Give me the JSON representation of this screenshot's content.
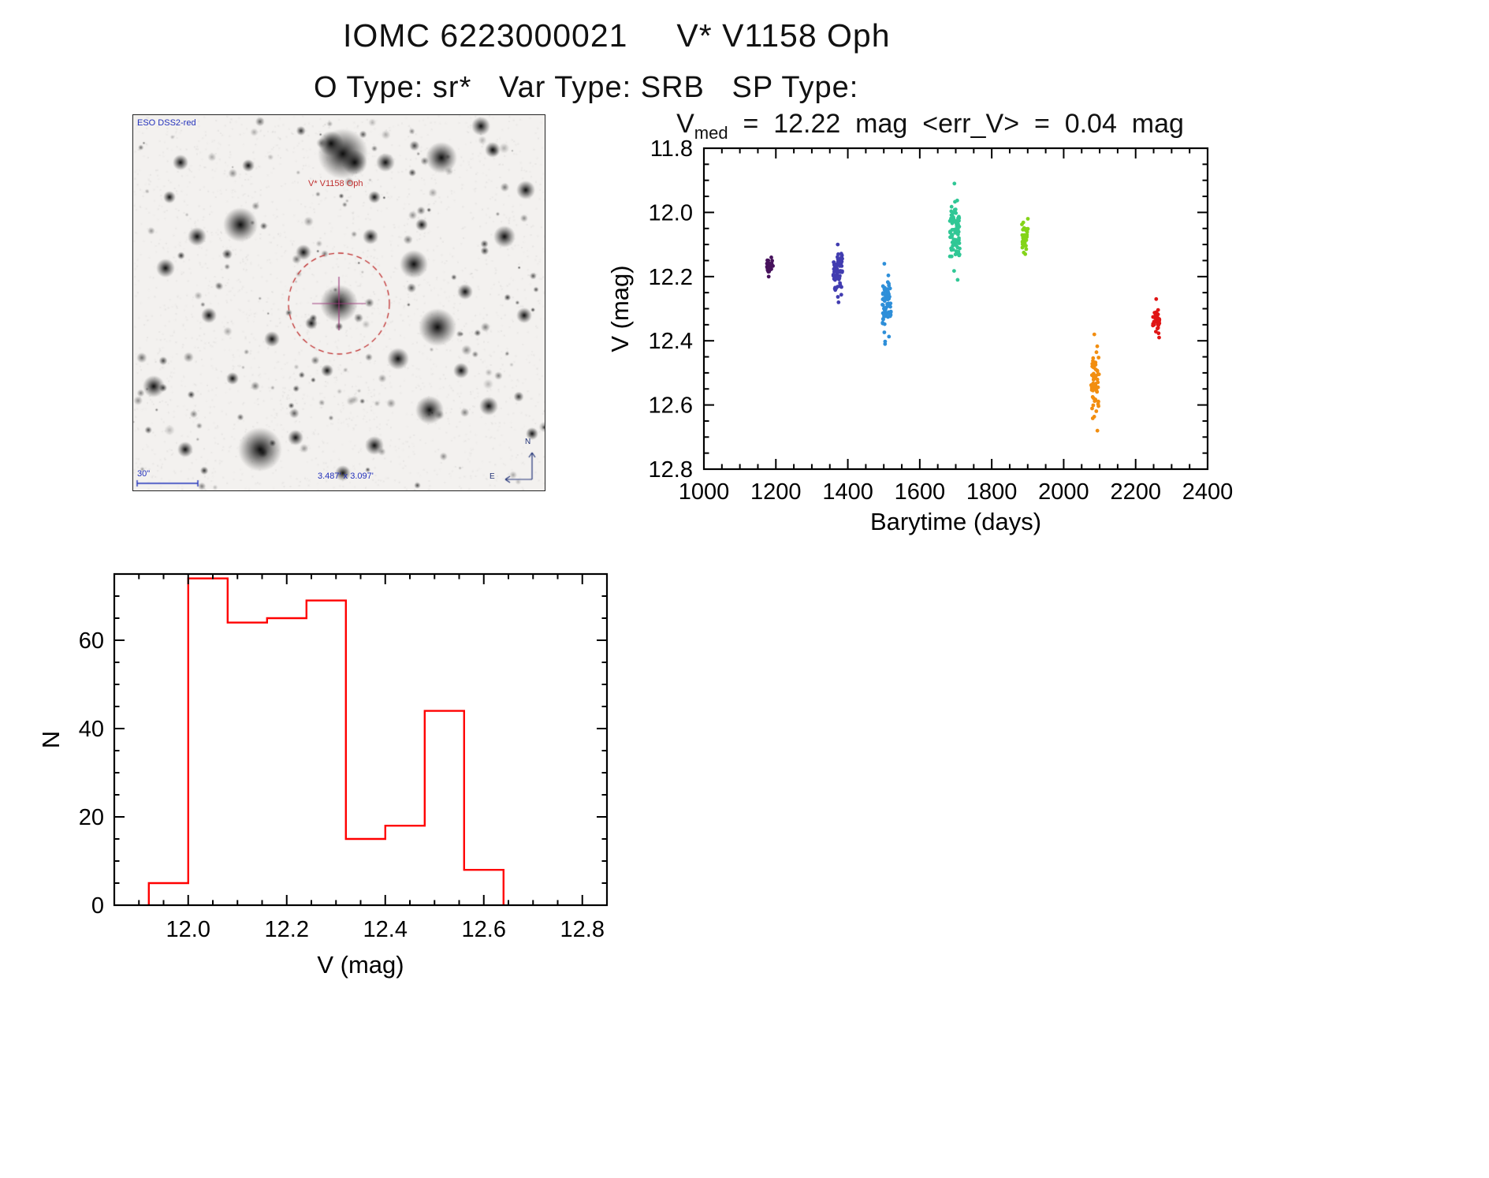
{
  "header": {
    "title": "IOMC 6223000021     V* V1158 Oph",
    "subtitle": "O Type: sr*   Var Type: SRB   SP Type:"
  },
  "finder": {
    "survey": "ESO DSS2-red",
    "target": "V* V1158 Oph",
    "scalebar": "30\"",
    "fov": "3.487' x 3.097'",
    "compass_north": "N",
    "compass_east": "E",
    "target_x": 261,
    "target_y": 239,
    "circle_r": 64,
    "stars": [
      [
        266,
        49,
        16
      ],
      [
        251,
        36,
        8
      ],
      [
        281,
        60,
        8
      ],
      [
        391,
        54,
        10
      ],
      [
        441,
        14,
        6
      ],
      [
        136,
        139,
        11
      ],
      [
        81,
        154,
        6
      ],
      [
        356,
        189,
        9
      ],
      [
        261,
        239,
        12
      ],
      [
        386,
        269,
        12
      ],
      [
        336,
        309,
        7
      ],
      [
        161,
        424,
        14
      ],
      [
        376,
        374,
        9
      ],
      [
        451,
        369,
        6
      ],
      [
        26,
        344,
        7
      ],
      [
        41,
        194,
        6
      ],
      [
        471,
        154,
        7
      ],
      [
        421,
        224,
        5
      ],
      [
        176,
        284,
        5
      ],
      [
        226,
        264,
        4
      ],
      [
        301,
        154,
        5
      ],
      [
        216,
        174,
        5
      ],
      [
        498,
        95,
        6
      ],
      [
        60,
        60,
        5
      ],
      [
        320,
        60,
        6
      ],
      [
        206,
        409,
        5
      ],
      [
        306,
        419,
        6
      ],
      [
        96,
        254,
        5
      ],
      [
        496,
        254,
        5
      ],
      [
        46,
        104,
        4
      ],
      [
        456,
        44,
        5
      ],
      [
        306,
        104,
        4
      ],
      [
        366,
        139,
        4
      ],
      [
        146,
        64,
        4
      ],
      [
        246,
        324,
        4
      ],
      [
        416,
        324,
        5
      ],
      [
        66,
        424,
        5
      ],
      [
        266,
        454,
        5
      ],
      [
        506,
        404,
        4
      ],
      [
        126,
        334,
        4
      ]
    ]
  },
  "chart_data": [
    {
      "id": "lightcurve",
      "type": "scatter",
      "title": "Vmed  =  12.22  mag  <err_V>  =  0.04  mag",
      "title_parts": {
        "prefix": "V",
        "sub": "med",
        "rest": "  =  12.22  mag  <err_V>  =  0.04  mag"
      },
      "xlabel": "Barytime (days)",
      "ylabel": "V (mag)",
      "xlim": [
        1000,
        2400
      ],
      "ylim": [
        11.8,
        12.8
      ],
      "y_axis_inverted": true,
      "xticks": [
        1000,
        1200,
        1400,
        1600,
        1800,
        2000,
        2200,
        2400
      ],
      "yticks": [
        11.8,
        12.0,
        12.2,
        12.4,
        12.6,
        12.8
      ],
      "x_minor_step": 50,
      "y_minor_step": 0.05,
      "clusters": [
        {
          "name": "epoch-1",
          "color": "#47125c",
          "x": 1183,
          "x_spread": 9,
          "v_min": 12.14,
          "v_max": 12.2,
          "n": 25
        },
        {
          "name": "epoch-2",
          "color": "#413cb0",
          "x": 1372,
          "x_spread": 13,
          "v_min": 12.1,
          "v_max": 12.28,
          "n": 70
        },
        {
          "name": "epoch-3",
          "color": "#2e8fd9",
          "x": 1508,
          "x_spread": 12,
          "v_min": 12.16,
          "v_max": 12.41,
          "n": 80
        },
        {
          "name": "epoch-4",
          "color": "#30c795",
          "x": 1697,
          "x_spread": 14,
          "v_min": 11.91,
          "v_max": 12.21,
          "n": 80
        },
        {
          "name": "epoch-5",
          "color": "#84d419",
          "x": 1893,
          "x_spread": 9,
          "v_min": 12.02,
          "v_max": 12.13,
          "n": 40
        },
        {
          "name": "epoch-6",
          "color": "#f28e10",
          "x": 2087,
          "x_spread": 11,
          "v_min": 12.38,
          "v_max": 12.68,
          "n": 60
        },
        {
          "name": "epoch-7",
          "color": "#e01515",
          "x": 2257,
          "x_spread": 9,
          "v_min": 12.27,
          "v_max": 12.39,
          "n": 35
        }
      ]
    },
    {
      "id": "histogram",
      "type": "bar",
      "xlabel": "V (mag)",
      "ylabel": "N",
      "xlim": [
        11.85,
        12.85
      ],
      "ylim": [
        0,
        75
      ],
      "xticks": [
        12.0,
        12.2,
        12.4,
        12.6,
        12.8
      ],
      "yticks": [
        0,
        20,
        40,
        60
      ],
      "x_minor_step": 0.05,
      "y_minor_step": 5,
      "bin_start": 11.92,
      "bin_width": 0.08,
      "values": [
        5,
        74,
        64,
        65,
        69,
        15,
        18,
        44,
        8
      ],
      "color": "#ff0000"
    }
  ]
}
